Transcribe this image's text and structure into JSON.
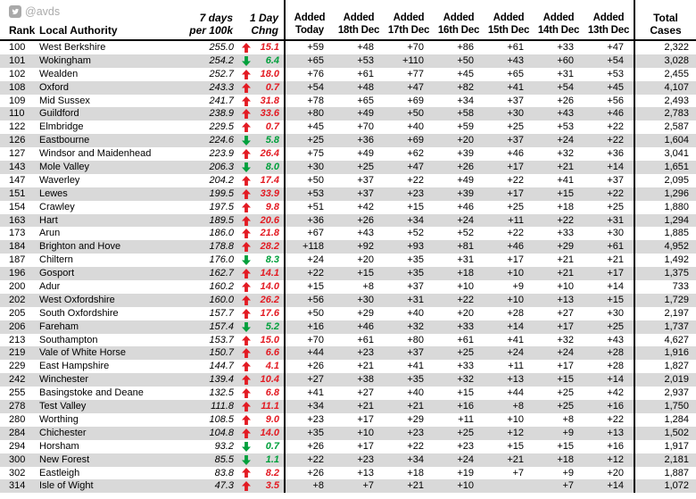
{
  "brand": {
    "handle": "@avds",
    "icon": "twitter-icon"
  },
  "colors": {
    "up": "#e31b23",
    "down": "#00a03c",
    "stripe": "#d9d9d9",
    "line": "#000000",
    "muted": "#a9a9a9"
  },
  "table": {
    "headers": {
      "rank": "Rank",
      "authority": "Local Authority",
      "rate_line1": "7 days",
      "rate_line2": "per 100k",
      "chng_line1": "1 Day",
      "chng_line2": "Chng",
      "added_label": "Added",
      "added_dates": [
        "Today",
        "18th Dec",
        "17th Dec",
        "16th Dec",
        "15th Dec",
        "14th Dec",
        "13th Dec"
      ],
      "total_line1": "Total",
      "total_line2": "Cases"
    },
    "rows": [
      {
        "rank": "100",
        "name": "West Berkshire",
        "rate": "255.0",
        "dir": "up",
        "chng": "15.1",
        "added": [
          "+59",
          "+48",
          "+70",
          "+86",
          "+61",
          "+33",
          "+47"
        ],
        "total": "2,322"
      },
      {
        "rank": "101",
        "name": "Wokingham",
        "rate": "254.2",
        "dir": "down",
        "chng": "6.4",
        "added": [
          "+65",
          "+53",
          "+110",
          "+50",
          "+43",
          "+60",
          "+54"
        ],
        "total": "3,028"
      },
      {
        "rank": "102",
        "name": "Wealden",
        "rate": "252.7",
        "dir": "up",
        "chng": "18.0",
        "added": [
          "+76",
          "+61",
          "+77",
          "+45",
          "+65",
          "+31",
          "+53"
        ],
        "total": "2,455"
      },
      {
        "rank": "108",
        "name": "Oxford",
        "rate": "243.3",
        "dir": "up",
        "chng": "0.7",
        "added": [
          "+54",
          "+48",
          "+47",
          "+82",
          "+41",
          "+54",
          "+45"
        ],
        "total": "4,107"
      },
      {
        "rank": "109",
        "name": "Mid Sussex",
        "rate": "241.7",
        "dir": "up",
        "chng": "31.8",
        "added": [
          "+78",
          "+65",
          "+69",
          "+34",
          "+37",
          "+26",
          "+56"
        ],
        "total": "2,493"
      },
      {
        "rank": "110",
        "name": "Guildford",
        "rate": "238.9",
        "dir": "up",
        "chng": "33.6",
        "added": [
          "+80",
          "+49",
          "+50",
          "+58",
          "+30",
          "+43",
          "+46"
        ],
        "total": "2,783"
      },
      {
        "rank": "122",
        "name": "Elmbridge",
        "rate": "229.5",
        "dir": "up",
        "chng": "0.7",
        "added": [
          "+45",
          "+70",
          "+40",
          "+59",
          "+25",
          "+53",
          "+22"
        ],
        "total": "2,587"
      },
      {
        "rank": "126",
        "name": "Eastbourne",
        "rate": "224.6",
        "dir": "down",
        "chng": "5.8",
        "added": [
          "+25",
          "+36",
          "+69",
          "+20",
          "+37",
          "+24",
          "+22"
        ],
        "total": "1,604"
      },
      {
        "rank": "127",
        "name": "Windsor and Maidenhead",
        "rate": "223.9",
        "dir": "up",
        "chng": "26.4",
        "added": [
          "+75",
          "+49",
          "+62",
          "+39",
          "+46",
          "+32",
          "+36"
        ],
        "total": "3,041"
      },
      {
        "rank": "143",
        "name": "Mole Valley",
        "rate": "206.3",
        "dir": "down",
        "chng": "8.0",
        "added": [
          "+30",
          "+25",
          "+47",
          "+26",
          "+17",
          "+21",
          "+14"
        ],
        "total": "1,651"
      },
      {
        "rank": "147",
        "name": "Waverley",
        "rate": "204.2",
        "dir": "up",
        "chng": "17.4",
        "added": [
          "+50",
          "+37",
          "+22",
          "+49",
          "+22",
          "+41",
          "+37"
        ],
        "total": "2,095"
      },
      {
        "rank": "151",
        "name": "Lewes",
        "rate": "199.5",
        "dir": "up",
        "chng": "33.9",
        "added": [
          "+53",
          "+37",
          "+23",
          "+39",
          "+17",
          "+15",
          "+22"
        ],
        "total": "1,296"
      },
      {
        "rank": "154",
        "name": "Crawley",
        "rate": "197.5",
        "dir": "up",
        "chng": "9.8",
        "added": [
          "+51",
          "+42",
          "+15",
          "+46",
          "+25",
          "+18",
          "+25"
        ],
        "total": "1,880"
      },
      {
        "rank": "163",
        "name": "Hart",
        "rate": "189.5",
        "dir": "up",
        "chng": "20.6",
        "added": [
          "+36",
          "+26",
          "+34",
          "+24",
          "+11",
          "+22",
          "+31"
        ],
        "total": "1,294"
      },
      {
        "rank": "173",
        "name": "Arun",
        "rate": "186.0",
        "dir": "up",
        "chng": "21.8",
        "added": [
          "+67",
          "+43",
          "+52",
          "+52",
          "+22",
          "+33",
          "+30"
        ],
        "total": "1,885"
      },
      {
        "rank": "184",
        "name": "Brighton and Hove",
        "rate": "178.8",
        "dir": "up",
        "chng": "28.2",
        "added": [
          "+118",
          "+92",
          "+93",
          "+81",
          "+46",
          "+29",
          "+61"
        ],
        "total": "4,952"
      },
      {
        "rank": "187",
        "name": "Chiltern",
        "rate": "176.0",
        "dir": "down",
        "chng": "8.3",
        "added": [
          "+24",
          "+20",
          "+35",
          "+31",
          "+17",
          "+21",
          "+21"
        ],
        "total": "1,492"
      },
      {
        "rank": "196",
        "name": "Gosport",
        "rate": "162.7",
        "dir": "up",
        "chng": "14.1",
        "added": [
          "+22",
          "+15",
          "+35",
          "+18",
          "+10",
          "+21",
          "+17"
        ],
        "total": "1,375"
      },
      {
        "rank": "200",
        "name": "Adur",
        "rate": "160.2",
        "dir": "up",
        "chng": "14.0",
        "added": [
          "+15",
          "+8",
          "+37",
          "+10",
          "+9",
          "+10",
          "+14"
        ],
        "total": "733"
      },
      {
        "rank": "202",
        "name": "West Oxfordshire",
        "rate": "160.0",
        "dir": "up",
        "chng": "26.2",
        "added": [
          "+56",
          "+30",
          "+31",
          "+22",
          "+10",
          "+13",
          "+15"
        ],
        "total": "1,729"
      },
      {
        "rank": "205",
        "name": "South Oxfordshire",
        "rate": "157.7",
        "dir": "up",
        "chng": "17.6",
        "added": [
          "+50",
          "+29",
          "+40",
          "+20",
          "+28",
          "+27",
          "+30"
        ],
        "total": "2,197"
      },
      {
        "rank": "206",
        "name": "Fareham",
        "rate": "157.4",
        "dir": "down",
        "chng": "5.2",
        "added": [
          "+16",
          "+46",
          "+32",
          "+33",
          "+14",
          "+17",
          "+25"
        ],
        "total": "1,737"
      },
      {
        "rank": "213",
        "name": "Southampton",
        "rate": "153.7",
        "dir": "up",
        "chng": "15.0",
        "added": [
          "+70",
          "+61",
          "+80",
          "+61",
          "+41",
          "+32",
          "+43"
        ],
        "total": "4,627"
      },
      {
        "rank": "219",
        "name": "Vale of White Horse",
        "rate": "150.7",
        "dir": "up",
        "chng": "6.6",
        "added": [
          "+44",
          "+23",
          "+37",
          "+25",
          "+24",
          "+24",
          "+28"
        ],
        "total": "1,916"
      },
      {
        "rank": "229",
        "name": "East Hampshire",
        "rate": "144.7",
        "dir": "up",
        "chng": "4.1",
        "added": [
          "+26",
          "+21",
          "+41",
          "+33",
          "+11",
          "+17",
          "+28"
        ],
        "total": "1,827"
      },
      {
        "rank": "242",
        "name": "Winchester",
        "rate": "139.4",
        "dir": "up",
        "chng": "10.4",
        "added": [
          "+27",
          "+38",
          "+35",
          "+32",
          "+13",
          "+15",
          "+14"
        ],
        "total": "2,019"
      },
      {
        "rank": "255",
        "name": "Basingstoke and Deane",
        "rate": "132.5",
        "dir": "up",
        "chng": "6.8",
        "added": [
          "+41",
          "+27",
          "+40",
          "+15",
          "+44",
          "+25",
          "+42"
        ],
        "total": "2,937"
      },
      {
        "rank": "278",
        "name": "Test Valley",
        "rate": "111.8",
        "dir": "up",
        "chng": "11.1",
        "added": [
          "+34",
          "+21",
          "+21",
          "+16",
          "+8",
          "+25",
          "+16"
        ],
        "total": "1,750"
      },
      {
        "rank": "280",
        "name": "Worthing",
        "rate": "108.5",
        "dir": "up",
        "chng": "9.0",
        "added": [
          "+23",
          "+17",
          "+29",
          "+11",
          "+10",
          "+8",
          "+22"
        ],
        "total": "1,284"
      },
      {
        "rank": "284",
        "name": "Chichester",
        "rate": "104.8",
        "dir": "up",
        "chng": "14.0",
        "added": [
          "+35",
          "+10",
          "+23",
          "+25",
          "+12",
          "+9",
          "+13"
        ],
        "total": "1,502"
      },
      {
        "rank": "294",
        "name": "Horsham",
        "rate": "93.2",
        "dir": "down",
        "chng": "0.7",
        "added": [
          "+26",
          "+17",
          "+22",
          "+23",
          "+15",
          "+15",
          "+16"
        ],
        "total": "1,917"
      },
      {
        "rank": "300",
        "name": "New Forest",
        "rate": "85.5",
        "dir": "down",
        "chng": "1.1",
        "added": [
          "+22",
          "+23",
          "+34",
          "+24",
          "+21",
          "+18",
          "+12"
        ],
        "total": "2,181"
      },
      {
        "rank": "302",
        "name": "Eastleigh",
        "rate": "83.8",
        "dir": "up",
        "chng": "8.2",
        "added": [
          "+26",
          "+13",
          "+18",
          "+19",
          "+7",
          "+9",
          "+20"
        ],
        "total": "1,887"
      },
      {
        "rank": "314",
        "name": "Isle of Wight",
        "rate": "47.3",
        "dir": "up",
        "chng": "3.5",
        "added": [
          "+8",
          "+7",
          "+21",
          "+10",
          "",
          "+7",
          "+14"
        ],
        "total": "1,072"
      }
    ]
  }
}
